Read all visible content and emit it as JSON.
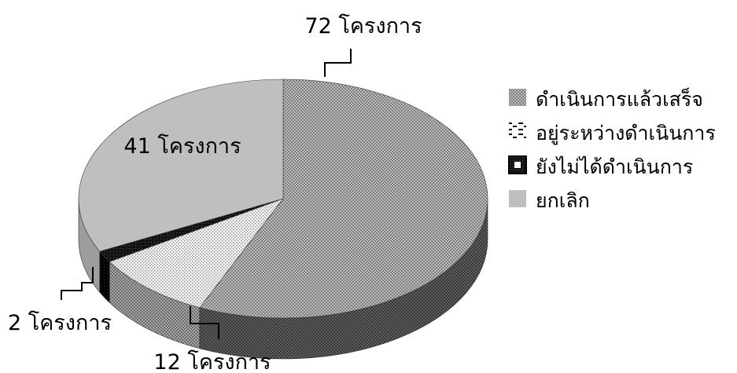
{
  "chart_data": {
    "type": "pie",
    "style": "3d",
    "title": "",
    "start_angle_deg": 90,
    "direction": "clockwise",
    "legend_position": "right",
    "slices": [
      {
        "legend": "ดำเนินการแล้วเสร็จ",
        "value": 72,
        "data_label": "72 โครงการ",
        "color": "#888888",
        "pattern": "checker"
      },
      {
        "legend": "อยู่ระหว่างดำเนินการ",
        "value": 12,
        "data_label": "12 โครงการ",
        "color": "#f0f0f0",
        "pattern": "dots"
      },
      {
        "legend": "ยังไม่ได้ดำเนินการ",
        "value": 2,
        "data_label": "2 โครงการ",
        "color": "#111111",
        "pattern": "solid-dark"
      },
      {
        "legend": "ยกเลิก",
        "value": 41,
        "data_label": "41 โครงการ",
        "color": "#bfbfbf",
        "pattern": "solid"
      }
    ]
  }
}
